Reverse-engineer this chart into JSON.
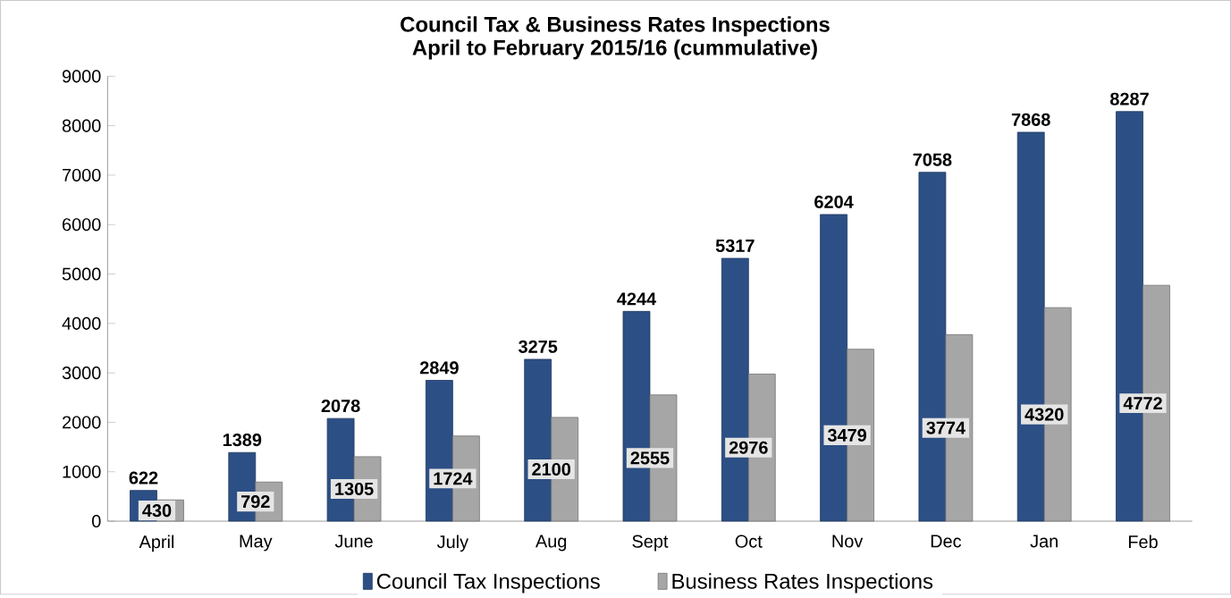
{
  "chart_data": {
    "type": "bar",
    "title": "Council Tax & Business Rates Inspections",
    "subtitle": "April to February 2015/16  (cummulative)",
    "categories": [
      "April",
      "May",
      "June",
      "July",
      "Aug",
      "Sept",
      "Oct",
      "Nov",
      "Dec",
      "Jan",
      "Feb"
    ],
    "series": [
      {
        "name": "Council Tax Inspections",
        "color": "#2c4f85",
        "values": [
          622,
          1389,
          2078,
          2849,
          3275,
          4244,
          5317,
          6204,
          7058,
          7868,
          8287
        ]
      },
      {
        "name": "Business Rates Inspections",
        "color": "#a6a6a6",
        "values": [
          430,
          792,
          1305,
          1724,
          2100,
          2555,
          2976,
          3479,
          3774,
          4320,
          4772
        ]
      }
    ],
    "ylim": [
      0,
      9000
    ],
    "yticks": [
      0,
      1000,
      2000,
      3000,
      4000,
      5000,
      6000,
      7000,
      8000,
      9000
    ],
    "data_labels": true,
    "legend": "bottom"
  }
}
